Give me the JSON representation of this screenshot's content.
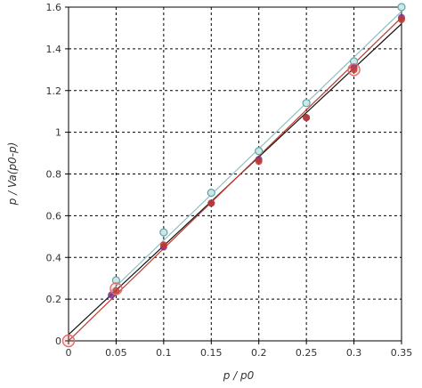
{
  "chart_data": {
    "type": "scatter",
    "title": "",
    "xlabel": "p / p0",
    "ylabel": "p / Va(p0-p)",
    "xlim": [
      0,
      0.35
    ],
    "ylim": [
      0,
      1.6
    ],
    "x_ticks": [
      "0",
      "0.05",
      "0.1",
      "0.15",
      "0.2",
      "0.25",
      "0.3",
      "0.35"
    ],
    "y_ticks": [
      "0",
      "0.2",
      "0.4",
      "0.6",
      "0.8",
      "1",
      "1.2",
      "1.4",
      "1.6"
    ],
    "grid": true,
    "series": [
      {
        "color": "#5aa5a8",
        "marker": "open-circle",
        "x": [
          0.05,
          0.1,
          0.15,
          0.2,
          0.25,
          0.3,
          0.35
        ],
        "y": [
          0.29,
          0.52,
          0.71,
          0.91,
          1.14,
          1.34,
          1.6
        ],
        "fit": {
          "x": [
            0.045,
            0.35
          ],
          "y": [
            0.24,
            1.58
          ]
        },
        "fit_color": "#8fbfc2"
      },
      {
        "color": "#7b2f8e",
        "marker": "circle",
        "x": [
          0.045,
          0.1,
          0.15,
          0.2,
          0.25,
          0.3,
          0.35
        ],
        "y": [
          0.22,
          0.45,
          0.66,
          0.87,
          1.07,
          1.31,
          1.55
        ]
      },
      {
        "color": "#c0392b",
        "marker": "circle",
        "x": [
          0.05,
          0.1,
          0.15,
          0.2,
          0.25,
          0.3,
          0.35
        ],
        "y": [
          0.24,
          0.46,
          0.66,
          0.86,
          1.07,
          1.3,
          1.54
        ],
        "fit": {
          "x": [
            0.0,
            0.35
          ],
          "y": [
            0.0,
            1.55
          ]
        },
        "fit_color": "#c0392b"
      },
      {
        "color": "#e36b6b",
        "marker": "large-open-circle",
        "x": [
          0.0,
          0.05,
          0.3
        ],
        "y": [
          0.0,
          0.25,
          1.3
        ]
      }
    ],
    "extra_fit": {
      "color": "#111111",
      "x": [
        0.0,
        0.35
      ],
      "y": [
        0.03,
        1.52
      ]
    }
  }
}
